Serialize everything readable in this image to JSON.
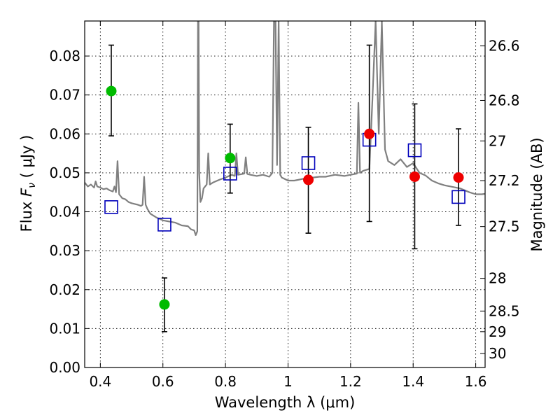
{
  "chart_data": {
    "type": "scatter",
    "xlabel": "Wavelength  λ (μm)",
    "ylabel_prefix": "Flux  ",
    "ylabel_var": "F",
    "ylabel_sub": "ν",
    "ylabel_suffix": " ( μJy )",
    "y2label": "Magnitude (AB)",
    "xlim": [
      0.35,
      1.63
    ],
    "ylim": [
      0.0,
      0.089
    ],
    "xticks": [
      0.4,
      0.6,
      0.8,
      1.0,
      1.2,
      1.4,
      1.6
    ],
    "xtick_labels": [
      "0.4",
      "0.6",
      "0.8",
      "1",
      "1.2",
      "1.4",
      "1.6"
    ],
    "yticks": [
      0.0,
      0.01,
      0.02,
      0.03,
      0.04,
      0.05,
      0.06,
      0.07,
      0.08
    ],
    "ytick_labels": [
      "0.00",
      "0.01",
      "0.02",
      "0.03",
      "0.04",
      "0.05",
      "0.06",
      "0.07",
      "0.08"
    ],
    "right_axis_ticks": [
      {
        "flux": 0.0826,
        "label": "26.6"
      },
      {
        "flux": 0.0686,
        "label": "26.8"
      },
      {
        "flux": 0.0582,
        "label": "27"
      },
      {
        "flux": 0.048,
        "label": "27.2"
      },
      {
        "flux": 0.0362,
        "label": "27.5"
      },
      {
        "flux": 0.0229,
        "label": "28"
      },
      {
        "flux": 0.0145,
        "label": "28.5"
      },
      {
        "flux": 0.0092,
        "label": "29"
      },
      {
        "flux": 0.0036,
        "label": "30"
      }
    ],
    "grid": true,
    "colors": {
      "spectrum": "#808080",
      "green_points": "#00bb00",
      "red_points": "#ee0000",
      "model_squares": "#0000bb",
      "errorbars": "#000000"
    },
    "series": [
      {
        "name": "model spectrum",
        "kind": "line",
        "x": [
          0.35,
          0.36,
          0.37,
          0.38,
          0.385,
          0.39,
          0.4,
          0.41,
          0.42,
          0.43,
          0.44,
          0.445,
          0.45,
          0.455,
          0.46,
          0.47,
          0.48,
          0.49,
          0.5,
          0.51,
          0.52,
          0.53,
          0.535,
          0.54,
          0.545,
          0.55,
          0.56,
          0.58,
          0.6,
          0.62,
          0.64,
          0.66,
          0.68,
          0.69,
          0.7,
          0.705,
          0.71,
          0.712,
          0.714,
          0.716,
          0.72,
          0.725,
          0.73,
          0.74,
          0.745,
          0.75,
          0.76,
          0.78,
          0.8,
          0.82,
          0.83,
          0.835,
          0.84,
          0.86,
          0.865,
          0.87,
          0.88,
          0.9,
          0.92,
          0.94,
          0.95,
          0.955,
          0.96,
          0.965,
          0.97,
          0.975,
          0.98,
          1.0,
          1.02,
          1.05,
          1.08,
          1.1,
          1.12,
          1.15,
          1.18,
          1.2,
          1.22,
          1.225,
          1.23,
          1.24,
          1.26,
          1.27,
          1.28,
          1.29,
          1.3,
          1.31,
          1.32,
          1.34,
          1.36,
          1.38,
          1.4,
          1.42,
          1.44,
          1.46,
          1.48,
          1.5,
          1.52,
          1.55,
          1.58,
          1.6,
          1.62,
          1.63
        ],
        "y": [
          0.0475,
          0.0465,
          0.047,
          0.0462,
          0.0478,
          0.0465,
          0.0462,
          0.0458,
          0.046,
          0.0455,
          0.0452,
          0.0465,
          0.045,
          0.053,
          0.0445,
          0.0435,
          0.0432,
          0.0425,
          0.0422,
          0.042,
          0.0418,
          0.0415,
          0.0418,
          0.049,
          0.0418,
          0.0408,
          0.0395,
          0.0385,
          0.0378,
          0.0375,
          0.0372,
          0.0365,
          0.0363,
          0.0355,
          0.0352,
          0.034,
          0.035,
          0.089,
          0.089,
          0.05,
          0.0425,
          0.0435,
          0.046,
          0.047,
          0.055,
          0.047,
          0.0475,
          0.0482,
          0.0488,
          0.0495,
          0.0492,
          0.055,
          0.0495,
          0.0498,
          0.054,
          0.0497,
          0.0495,
          0.0492,
          0.0495,
          0.049,
          0.05,
          0.089,
          0.089,
          0.052,
          0.089,
          0.0495,
          0.0488,
          0.048,
          0.048,
          0.0485,
          0.0488,
          0.049,
          0.049,
          0.0495,
          0.0492,
          0.0495,
          0.0498,
          0.068,
          0.05,
          0.0505,
          0.051,
          0.069,
          0.089,
          0.06,
          0.089,
          0.056,
          0.053,
          0.052,
          0.0535,
          0.0515,
          0.0525,
          0.05,
          0.0493,
          0.048,
          0.0473,
          0.0468,
          0.0465,
          0.046,
          0.045,
          0.0445,
          0.0445,
          0.0446
        ]
      },
      {
        "name": "observed (green)",
        "kind": "points",
        "x": [
          0.435,
          0.605,
          0.815
        ],
        "y": [
          0.071,
          0.0162,
          0.0538
        ],
        "err_low": [
          0.0595,
          0.0092,
          0.0448
        ],
        "err_high": [
          0.0828,
          0.023,
          0.0625
        ]
      },
      {
        "name": "observed (red)",
        "kind": "points",
        "x": [
          1.065,
          1.26,
          1.405,
          1.545
        ],
        "y": [
          0.0482,
          0.06,
          0.049,
          0.0488
        ],
        "err_low": [
          0.0345,
          0.0375,
          0.0305,
          0.0365
        ],
        "err_high": [
          0.0617,
          0.0828,
          0.0677,
          0.0613
        ]
      },
      {
        "name": "model photometry",
        "kind": "squares",
        "x": [
          0.435,
          0.605,
          0.815,
          1.065,
          1.26,
          1.405,
          1.545
        ],
        "y": [
          0.0412,
          0.0367,
          0.0498,
          0.0525,
          0.0585,
          0.0558,
          0.0438
        ]
      }
    ]
  }
}
